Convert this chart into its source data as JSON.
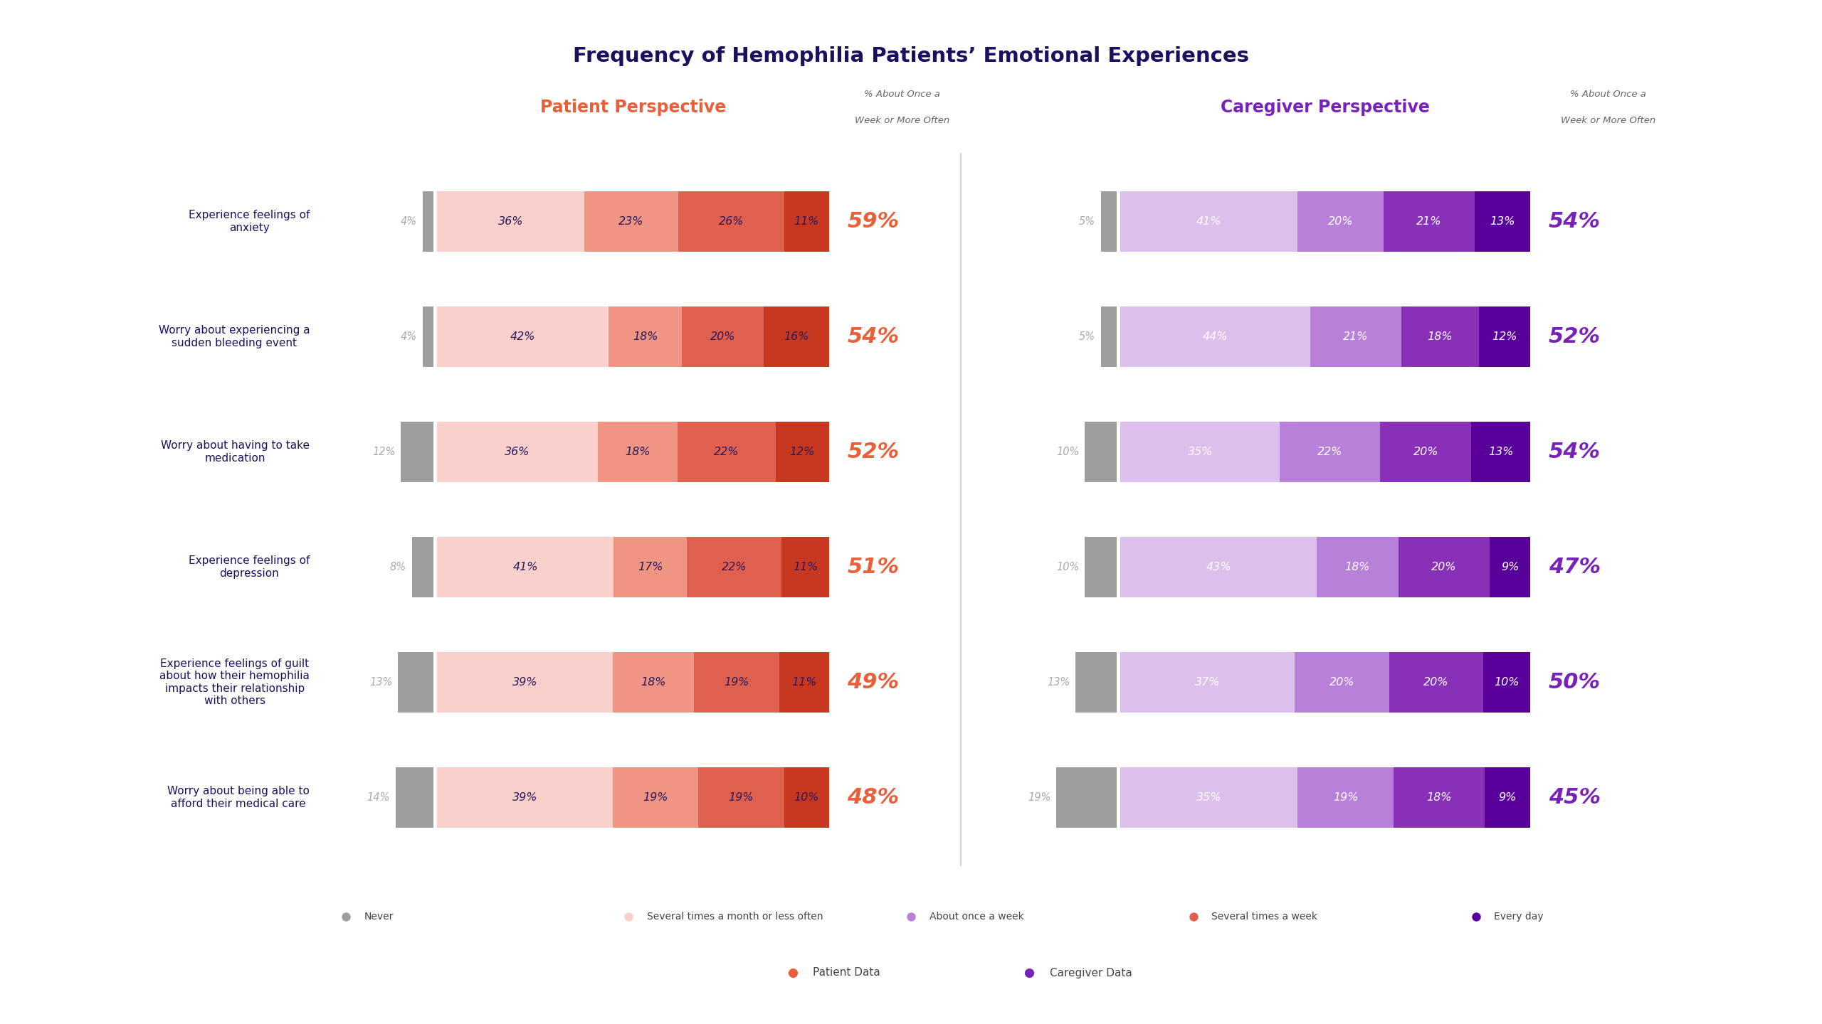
{
  "title": "Frequency of Hemophilia Patients’ Emotional Experiences",
  "categories": [
    "Experience feelings of\nanxiety",
    "Worry about experiencing a\nsudden bleeding event",
    "Worry about having to take\nmedication",
    "Experience feelings of\ndepression",
    "Experience feelings of guilt\nabout how their hemophilia\nimpacts their relationship\nwith others",
    "Worry about being able to\nafford their medical care"
  ],
  "patient": {
    "never": [
      4,
      4,
      12,
      8,
      13,
      14
    ],
    "several_month": [
      36,
      42,
      36,
      41,
      39,
      39
    ],
    "once_week": [
      23,
      18,
      18,
      17,
      18,
      19
    ],
    "several_week": [
      26,
      20,
      22,
      22,
      19,
      19
    ],
    "every_day": [
      11,
      16,
      12,
      11,
      11,
      10
    ],
    "pct_label": [
      "59%",
      "54%",
      "52%",
      "51%",
      "49%",
      "48%"
    ]
  },
  "caregiver": {
    "never": [
      5,
      5,
      10,
      10,
      13,
      19
    ],
    "several_month": [
      41,
      44,
      35,
      43,
      37,
      35
    ],
    "once_week": [
      20,
      21,
      22,
      18,
      20,
      19
    ],
    "several_week": [
      21,
      18,
      20,
      20,
      20,
      18
    ],
    "every_day": [
      13,
      12,
      13,
      9,
      10,
      9
    ],
    "pct_label": [
      "54%",
      "52%",
      "54%",
      "47%",
      "50%",
      "45%"
    ]
  },
  "patient_colors": {
    "never": "#9e9e9e",
    "several_month": "#f9d0cb",
    "once_week": "#f09484",
    "several_week": "#e06050",
    "every_day": "#c83820"
  },
  "caregiver_colors": {
    "never": "#9e9e9e",
    "several_month": "#ddbfee",
    "once_week": "#b880d8",
    "several_week": "#8830b8",
    "every_day": "#5a009a"
  },
  "patient_perspective_color": "#e8603a",
  "caregiver_perspective_color": "#7722b8",
  "pct_label_patient_color": "#e8603a",
  "pct_label_caregiver_color": "#7722b8",
  "never_label_color": "#aaaaaa",
  "bar_text_color": "#2a1a5e",
  "caregiver_bar_text_color": "#ffffff",
  "title_color": "#1a1060",
  "category_label_color": "#1a1060",
  "header_note_color": "#666666",
  "background_color": "#ffffff",
  "divider_color": "#cccccc"
}
